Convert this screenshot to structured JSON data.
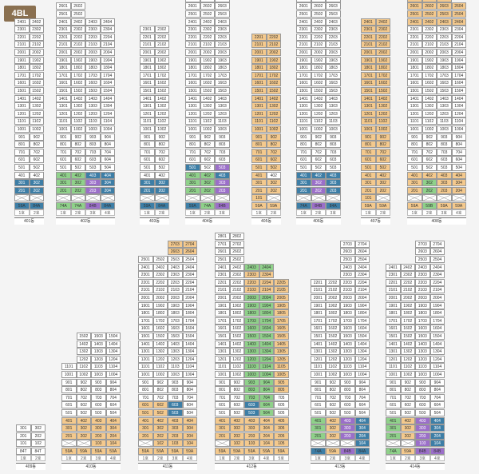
{
  "badge": "4BL",
  "colors": {
    "o": "#f4c98d",
    "g": "#8fd18a",
    "b": "#3d7ea6",
    "p": "#9b6fc9",
    "w": "#ffffff"
  },
  "buildings": [
    {
      "name": "401동",
      "maxFloor": 24,
      "floorHeights": [
        24,
        24
      ],
      "types": [
        "59A",
        "84A"
      ],
      "typeColors": [
        "b",
        "b"
      ],
      "paint": {
        "3": "bb",
        "2": "bb",
        "1": "xx"
      }
    },
    {
      "name": "402동",
      "maxFloor": 26,
      "floorHeights": [
        26,
        26,
        24,
        24
      ],
      "types": [
        "74A",
        "74A",
        "84B",
        "84A"
      ],
      "typeColors": [
        "g",
        "g",
        "p",
        "b"
      ],
      "paint": {
        "4": "ggbb",
        "3": "ggpb",
        "2": "ggpb",
        "1": "xxxx"
      }
    },
    {
      "name": "403동",
      "maxFloor": 23,
      "floorHeights": [
        23,
        23
      ],
      "types": [
        "59A",
        "84A"
      ],
      "typeColors": [
        "b",
        "b"
      ],
      "paint": {
        "3": "bb",
        "2": "bb",
        "1": "xx"
      }
    },
    {
      "name": "404동",
      "maxFloor": 28,
      "floorHeights": [
        28,
        28,
        28
      ],
      "types": [
        "59A",
        "74A",
        "84B"
      ],
      "typeColors": [
        "b",
        "g",
        "p"
      ],
      "paint": {
        "5": "bwp",
        "4": "ggb",
        "3": "ggp",
        "2": "ggp",
        "1": "xxx"
      }
    },
    {
      "name": "405동",
      "maxFloor": 22,
      "floorHeights": [
        22,
        22
      ],
      "types": [
        "59A",
        "59A"
      ],
      "typeColors": [
        "o",
        "o"
      ],
      "paintRange": {
        "o": [
          1,
          22
        ]
      },
      "paint": {
        "4": "ow",
        "1": "ox"
      }
    },
    {
      "name": "406동",
      "maxFloor": 28,
      "floorHeights": [
        28,
        28,
        28
      ],
      "types": [
        "74A",
        "84B",
        "84A"
      ],
      "typeColors": [
        "b",
        "p",
        "b"
      ],
      "paint": {
        "4": "bbb",
        "3": "bpb",
        "2": "bpb",
        "1": "xxx"
      }
    },
    {
      "name": "407동",
      "maxFloor": 24,
      "floorHeights": [
        24,
        24
      ],
      "types": [
        "59A",
        "59A"
      ],
      "typeColors": [
        "o",
        "o"
      ],
      "paintRange": {
        "o": [
          1,
          24
        ]
      },
      "paint": {
        "1": "ox"
      }
    },
    {
      "name": "408동",
      "maxFloor": 28,
      "floorHeights": [
        28,
        28,
        28,
        26
      ],
      "types": [
        "59A",
        "59B",
        "59A",
        "59A"
      ],
      "typeColors": [
        "o",
        "g",
        "o",
        "o"
      ],
      "paintRange": {
        "o": [
          24,
          28
        ]
      },
      "paint": {
        "24": "oooo",
        "4": "oooo",
        "3": "ogoo",
        "2": "ogoo",
        "1": "xxxx"
      }
    },
    {
      "name": "409동",
      "maxFloor": 3,
      "floorHeights": [
        3,
        3
      ],
      "types": [
        "84T",
        "84T"
      ],
      "typeColors": [
        "w",
        "w"
      ],
      "paint": {}
    },
    {
      "name": "410동",
      "maxFloor": 15,
      "floorHeights": [
        11,
        15,
        15,
        15
      ],
      "types": [
        "59A",
        "59A",
        "59A",
        "59A"
      ],
      "typeColors": [
        "o",
        "o",
        "o",
        "o"
      ],
      "paintRange": {
        "o": [
          1,
          4
        ]
      },
      "paint": {
        "1": "xxoo"
      }
    },
    {
      "name": "411동",
      "maxFloor": 27,
      "floorHeights": [
        25,
        25,
        27,
        27
      ],
      "types": [
        "59A",
        "59A",
        "59A",
        "59A"
      ],
      "typeColors": [
        "o",
        "o",
        "o",
        "o"
      ],
      "paintRange": {
        "o": [
          1,
          4
        ]
      },
      "paint": {
        "27": "wwoo",
        "26": "wwoo",
        "6": "oobw",
        "5": "oobw",
        "1": "xooo"
      }
    },
    {
      "name": "412동",
      "maxFloor": 28,
      "floorHeights": [
        28,
        28,
        24,
        24,
        22
      ],
      "types": [
        "59A",
        "59A",
        "59A",
        "59A",
        "59A"
      ],
      "typeColors": [
        "o",
        "o",
        "o",
        "o",
        "o"
      ],
      "paintRange": {
        "o": [
          1,
          4
        ]
      },
      "paint": {
        "24": "wwggw",
        "23": "wwooo",
        "22": "wwooo",
        "21": "wwooo",
        "20": "wwggo",
        "19": "wwggo",
        "18": "wwggo",
        "17": "wwggo",
        "16": "wwggo",
        "15": "wwggo",
        "14": "wwggo",
        "13": "wwggo",
        "12": "wwggo",
        "11": "wwggo",
        "10": "wwggo",
        "9": "wwggo",
        "8": "wwggo",
        "7": "wwggw",
        "6": "wwbgw",
        "5": "wwbgw",
        "1": "xoooo"
      }
    },
    {
      "name": "413동",
      "maxFloor": 27,
      "floorHeights": [
        22,
        22,
        27,
        27
      ],
      "types": [
        "74A",
        "59A",
        "84B",
        "84A"
      ],
      "typeColors": [
        "b",
        "o",
        "p",
        "b"
      ],
      "paint": {
        "4": "gopb",
        "3": "gopb",
        "2": "gopb",
        "1": "xxxb"
      }
    },
    {
      "name": "414동",
      "maxFloor": 27,
      "floorHeights": [
        24,
        24,
        27,
        27
      ],
      "types": [
        "74A",
        "59A",
        "84B",
        "84B"
      ],
      "typeColors": [
        "g",
        "o",
        "p",
        "p"
      ],
      "paint": {
        "4": "gopb",
        "3": "gopb",
        "2": "gopb",
        "1": "xxpb"
      }
    }
  ],
  "lineLabels": [
    "1호",
    "2호",
    "3호",
    "4호",
    "5호"
  ]
}
